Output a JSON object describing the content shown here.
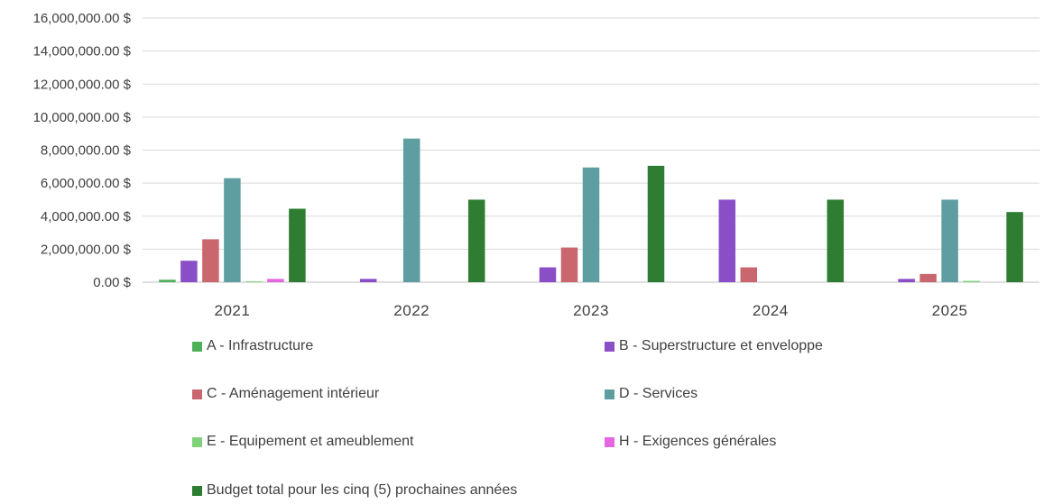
{
  "chart_data": {
    "type": "bar",
    "categories": [
      "2021",
      "2022",
      "2023",
      "2024",
      "2025"
    ],
    "ylim": [
      0,
      16000000
    ],
    "yticks": [
      0,
      2000000,
      4000000,
      6000000,
      8000000,
      10000000,
      12000000,
      14000000,
      16000000
    ],
    "ytick_labels": [
      "0.00 $",
      "2,000,000.00 $",
      "4,000,000.00 $",
      "6,000,000.00 $",
      "8,000,000.00 $",
      "10,000,000.00 $",
      "12,000,000.00 $",
      "14,000,000.00 $",
      "16,000,000.00 $"
    ],
    "grid": true,
    "legend_position": "bottom",
    "series": [
      {
        "name": "A - Infrastructure",
        "color": "#4fb05a",
        "values": [
          150000,
          0,
          0,
          0,
          0
        ]
      },
      {
        "name": "B - Superstructure et enveloppe",
        "color": "#8a4fc7",
        "values": [
          1300000,
          200000,
          900000,
          5000000,
          200000
        ]
      },
      {
        "name": "C - Aménagement intérieur",
        "color": "#c9666e",
        "values": [
          2600000,
          0,
          2100000,
          900000,
          500000
        ]
      },
      {
        "name": "D - Services",
        "color": "#5f9ea0",
        "values": [
          6300000,
          8700000,
          6950000,
          0,
          5000000
        ]
      },
      {
        "name": "E - Equipement et ameublement",
        "color": "#7fd17a",
        "values": [
          50000,
          0,
          0,
          0,
          80000
        ]
      },
      {
        "name": "H - Exigences générales",
        "color": "#e466e0",
        "values": [
          200000,
          0,
          0,
          0,
          0
        ]
      },
      {
        "name": "Budget total pour les cinq (5) prochaines années",
        "color": "#2e7d32",
        "values": [
          4450000,
          5000000,
          7050000,
          5000000,
          4250000
        ]
      }
    ]
  }
}
